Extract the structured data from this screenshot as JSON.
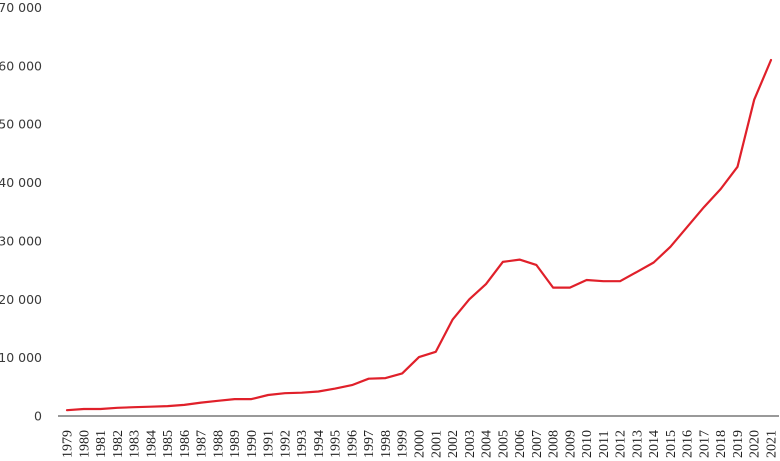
{
  "chart_data": {
    "type": "line",
    "title": "",
    "xlabel": "",
    "ylabel": "",
    "ylim": [
      0,
      70000
    ],
    "yticks": [
      0,
      10000,
      20000,
      30000,
      40000,
      50000,
      60000,
      70000
    ],
    "ytick_labels": [
      "0",
      "10 000",
      "20 000",
      "30 000",
      "40 000",
      "50 000",
      "60 000",
      "70 000"
    ],
    "grid": false,
    "legend": null,
    "categories": [
      "1979",
      "1980",
      "1981",
      "1982",
      "1983",
      "1984",
      "1985",
      "1986",
      "1987",
      "1988",
      "1989",
      "1990",
      "1991",
      "1992",
      "1993",
      "1994",
      "1995",
      "1996",
      "1997",
      "1998",
      "1999",
      "2000",
      "2001",
      "2002",
      "2003",
      "2004",
      "2005",
      "2006",
      "2007",
      "2008",
      "2009",
      "2010",
      "2011",
      "2012",
      "2013",
      "2014",
      "2015",
      "2016",
      "2017",
      "2018",
      "2019",
      "2020",
      "2021"
    ],
    "series": [
      {
        "name": "",
        "color": "#E0202A",
        "values": [
          1000,
          1200,
          1200,
          1400,
          1500,
          1600,
          1700,
          1900,
          2300,
          2600,
          2900,
          2900,
          3600,
          3900,
          4000,
          4200,
          4700,
          5300,
          6400,
          6500,
          7300,
          10100,
          11000,
          16500,
          20000,
          22600,
          26400,
          26800,
          25900,
          22000,
          22000,
          23300,
          23100,
          23100,
          24700,
          26300,
          29000,
          32400,
          35800,
          38900,
          42700,
          54200,
          61000
        ]
      }
    ]
  }
}
